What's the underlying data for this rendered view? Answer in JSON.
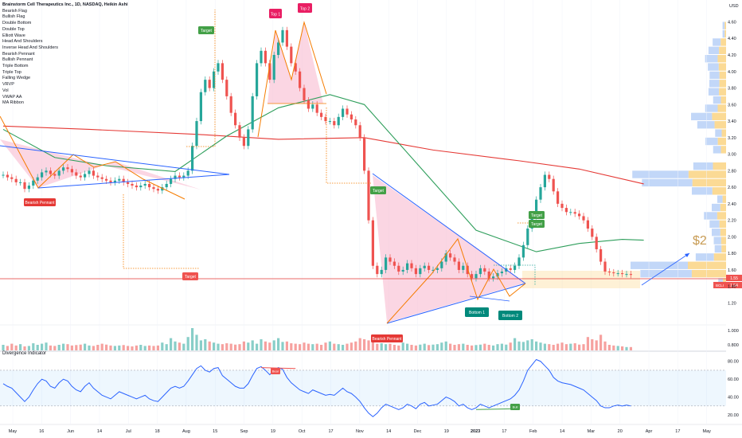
{
  "header": {
    "title": "Brainstorm Cell Therapeutics Inc., 1D, NASDAQ, Heikin Ashi",
    "currency": "USD"
  },
  "legend_items": [
    "Bearish Flag",
    "Bullish Flag",
    "Double Bottom",
    "Double Top",
    "Elliott Wave",
    "Head And Shoulders",
    "Inverse Head And Shoulders",
    "Bearish Pennant",
    "Bullish Pennant",
    "Triple Bottom",
    "Triple Top",
    "Falling Wedge",
    "VRVP",
    "Vol",
    "VWAP AA",
    "MA Ribbon"
  ],
  "indicator_title": "Divergence Indicator",
  "colors": {
    "up": "#26a69a",
    "down": "#ef5350",
    "ma_red": "#e53935",
    "ma_green": "#2e9e5b",
    "wedge": "#2962ff",
    "pattern_line": "#f57c00",
    "fill_pink": "#f8bbd0",
    "vrvp_blue": "#bbd3f7",
    "vrvp_orange": "#fbd68a",
    "osc": "#2962ff"
  },
  "chart_data": {
    "type": "candlestick",
    "price_axis": {
      "ticks": [
        "4.60",
        "4.40",
        "4.20",
        "4.00",
        "3.80",
        "3.60",
        "3.40",
        "3.20",
        "3.00",
        "2.80",
        "2.60",
        "2.40",
        "2.20",
        "2.00",
        "1.80",
        "1.60",
        "1.40",
        "1.20"
      ],
      "ylim": [
        1.06,
        4.72
      ]
    },
    "volume_axis": {
      "ticks": [
        "1.000",
        "0.800"
      ]
    },
    "osc_axis": {
      "ticks": [
        "80.00",
        "60.00",
        "40.00",
        "20.00"
      ],
      "ylim": [
        12,
        86
      ],
      "band": [
        30,
        70
      ]
    },
    "x_ticks": [
      "May",
      "16",
      "Jun",
      "14",
      "Jul",
      "18",
      "Aug",
      "15",
      "Sep",
      "19",
      "Oct",
      "17",
      "Nov",
      "14",
      "Dec",
      "19",
      "2023",
      "17",
      "Feb",
      "14",
      "Mar",
      "20",
      "Apr",
      "17",
      "May"
    ],
    "price_labels": [
      {
        "value": "1.55",
        "color": "#ef5350"
      },
      {
        "value": "1.54",
        "color": "#ef5350"
      }
    ],
    "ticker_label": "BCLI",
    "close": [
      2.75,
      2.72,
      2.7,
      2.66,
      2.66,
      2.58,
      2.62,
      2.68,
      2.72,
      2.78,
      2.8,
      2.76,
      2.74,
      2.8,
      2.84,
      2.82,
      2.78,
      2.74,
      2.72,
      2.76,
      2.8,
      2.74,
      2.72,
      2.7,
      2.68,
      2.66,
      2.68,
      2.7,
      2.66,
      2.64,
      2.62,
      2.6,
      2.62,
      2.64,
      2.6,
      2.58,
      2.56,
      2.6,
      2.64,
      2.7,
      2.74,
      2.72,
      2.74,
      2.8,
      3.1,
      3.4,
      3.75,
      3.9,
      3.8,
      4.0,
      4.1,
      3.9,
      3.7,
      3.5,
      3.35,
      3.2,
      3.1,
      3.3,
      3.7,
      4.1,
      4.25,
      4.1,
      3.9,
      4.2,
      4.35,
      4.5,
      4.3,
      4.1,
      4.0,
      3.8,
      3.65,
      3.55,
      3.6,
      3.5,
      3.45,
      3.4,
      3.4,
      3.35,
      3.45,
      3.55,
      3.48,
      3.42,
      3.35,
      3.2,
      2.8,
      2.2,
      1.65,
      1.55,
      1.6,
      1.75,
      1.7,
      1.65,
      1.58,
      1.6,
      1.68,
      1.62,
      1.55,
      1.62,
      1.65,
      1.6,
      1.6,
      1.62,
      1.7,
      1.8,
      1.75,
      1.7,
      1.6,
      1.65,
      1.55,
      1.5,
      1.55,
      1.62,
      1.58,
      1.5,
      1.52,
      1.56,
      1.58,
      1.62,
      1.6,
      1.65,
      1.75,
      1.9,
      2.1,
      2.25,
      2.45,
      2.6,
      2.75,
      2.7,
      2.55,
      2.4,
      2.35,
      2.3,
      2.3,
      2.28,
      2.25,
      2.2,
      2.1,
      2.0,
      1.85,
      1.7,
      1.58,
      1.57,
      1.56,
      1.56,
      1.55,
      1.55,
      1.54
    ],
    "moving_averages": [
      {
        "color": "#e53935",
        "points": [
          [
            0,
            3.34
          ],
          [
            20,
            3.3
          ],
          [
            45,
            3.24
          ],
          [
            64,
            3.18
          ],
          [
            84,
            3.2
          ],
          [
            100,
            3.05
          ],
          [
            120,
            2.92
          ],
          [
            134,
            2.82
          ],
          [
            149,
            2.64
          ]
        ]
      },
      {
        "color": "#2e9e5b",
        "points": [
          [
            0,
            3.3
          ],
          [
            12,
            2.96
          ],
          [
            24,
            2.86
          ],
          [
            40,
            2.79
          ],
          [
            52,
            3.22
          ],
          [
            64,
            3.56
          ],
          [
            76,
            3.72
          ],
          [
            84,
            3.6
          ],
          [
            96,
            2.9
          ],
          [
            110,
            2.08
          ],
          [
            124,
            1.82
          ],
          [
            134,
            1.92
          ],
          [
            144,
            1.97
          ],
          [
            149,
            1.96
          ]
        ]
      }
    ],
    "patterns": [
      {
        "name": "Bearish Pennant",
        "label": "Bearish Pennant"
      },
      {
        "name": "Double Top",
        "labels": [
          "Top 1",
          "Top 2"
        ]
      },
      {
        "name": "Bearish Pennant",
        "label": "Bearish Pennant"
      },
      {
        "name": "Double Bottom",
        "labels": [
          "Bottom 1",
          "Bottom 2"
        ]
      }
    ],
    "target_labels": [
      "Target",
      "Target",
      "Target",
      "Target",
      "Target"
    ],
    "divergence_labels": [
      "Bear",
      "Bull"
    ],
    "projection_label": "$2",
    "volume": [
      0.25,
      0.2,
      0.3,
      0.22,
      0.28,
      0.18,
      0.2,
      0.32,
      0.25,
      0.3,
      0.35,
      0.22,
      0.2,
      0.25,
      0.3,
      0.28,
      0.22,
      0.24,
      0.26,
      0.3,
      0.22,
      0.2,
      0.25,
      0.3,
      0.26,
      0.22,
      0.2,
      0.22,
      0.24,
      0.2,
      0.18,
      0.22,
      0.25,
      0.2,
      0.22,
      0.2,
      0.22,
      0.35,
      0.28,
      0.55,
      0.4,
      0.35,
      0.3,
      0.6,
      1.0,
      0.7,
      0.45,
      0.5,
      0.4,
      0.35,
      0.3,
      0.28,
      0.32,
      0.3,
      0.26,
      0.28,
      0.4,
      0.35,
      0.45,
      0.3,
      0.5,
      0.4,
      0.35,
      0.45,
      0.55,
      0.38,
      0.4,
      0.32,
      0.3,
      0.28,
      0.35,
      0.3,
      0.28,
      0.3,
      0.25,
      0.35,
      0.4,
      0.3,
      0.28,
      0.25,
      0.3,
      0.35,
      0.4,
      0.55,
      0.5,
      0.45,
      0.4,
      0.3,
      0.32,
      0.28,
      0.3,
      0.25,
      0.22,
      0.35,
      0.3,
      0.25,
      0.22,
      0.26,
      0.3,
      0.24,
      0.26,
      0.28,
      0.35,
      0.4,
      0.3,
      0.25,
      0.28,
      0.3,
      0.25,
      0.22,
      0.24,
      0.26,
      0.3,
      0.25,
      0.22,
      0.28,
      0.3,
      0.26,
      0.35,
      0.55,
      0.4,
      0.38,
      0.45,
      0.5,
      0.4,
      0.35,
      0.3,
      0.28,
      0.25,
      0.3,
      0.35,
      0.28,
      0.3,
      0.32,
      0.26,
      0.28,
      0.6,
      0.5,
      0.45,
      0.7,
      0.4,
      0.25,
      0.22,
      0.2,
      0.18,
      0.15,
      0.15
    ],
    "oscillator": [
      55,
      52,
      50,
      45,
      40,
      35,
      40,
      48,
      55,
      60,
      58,
      52,
      50,
      56,
      60,
      58,
      52,
      48,
      46,
      52,
      56,
      50,
      46,
      42,
      40,
      38,
      42,
      46,
      44,
      42,
      40,
      38,
      40,
      42,
      38,
      36,
      35,
      40,
      45,
      50,
      52,
      50,
      52,
      58,
      65,
      72,
      75,
      70,
      68,
      72,
      73,
      64,
      60,
      56,
      52,
      50,
      50,
      55,
      64,
      72,
      74,
      70,
      65,
      70,
      73,
      71,
      62,
      56,
      52,
      48,
      46,
      44,
      48,
      46,
      44,
      42,
      43,
      42,
      46,
      50,
      46,
      44,
      40,
      35,
      28,
      22,
      18,
      22,
      28,
      32,
      30,
      28,
      26,
      28,
      32,
      30,
      27,
      32,
      34,
      30,
      31,
      32,
      36,
      40,
      38,
      35,
      30,
      32,
      28,
      26,
      28,
      32,
      30,
      28,
      30,
      32,
      34,
      36,
      38,
      42,
      48,
      58,
      70,
      76,
      82,
      80,
      75,
      70,
      62,
      58,
      56,
      55,
      54,
      52,
      50,
      48,
      44,
      40,
      36,
      30,
      28,
      28,
      30,
      31,
      30,
      31,
      30
    ]
  }
}
